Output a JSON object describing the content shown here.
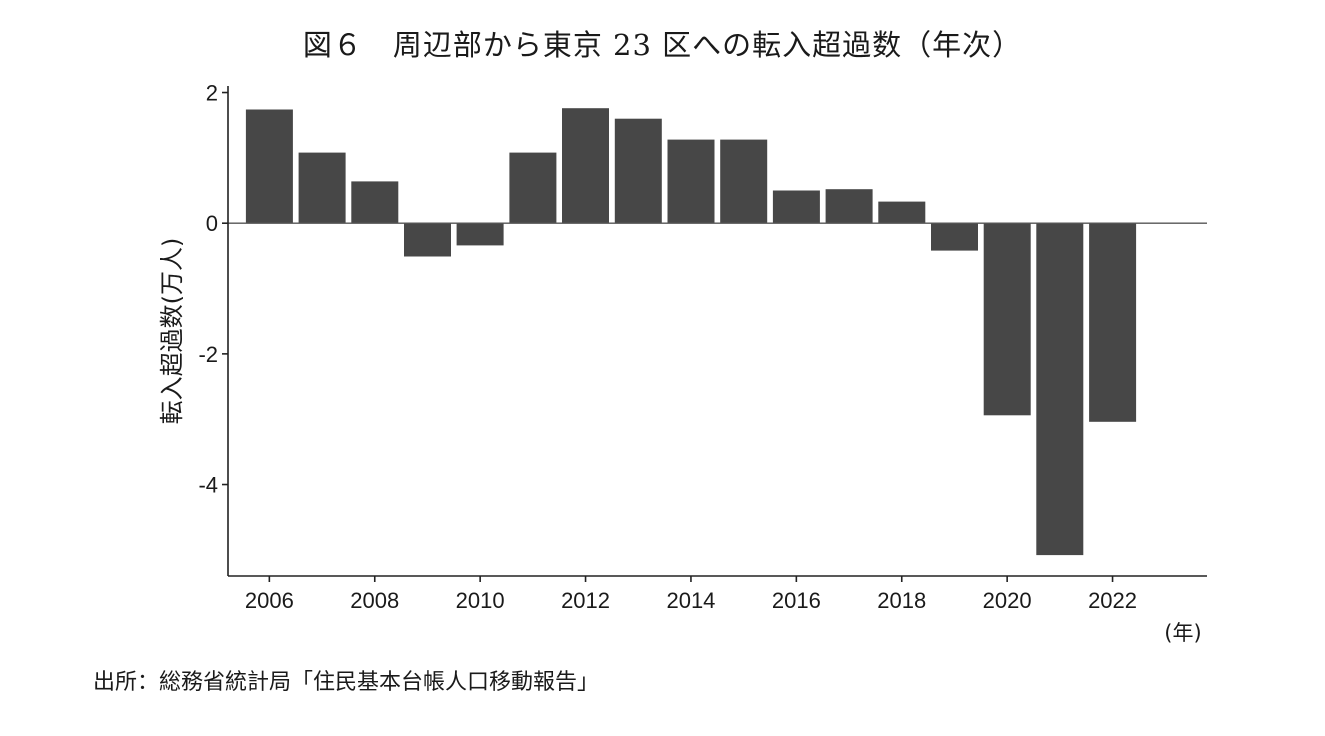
{
  "chart_data": {
    "type": "bar",
    "title": "図６　周辺部から東京 23 区への転入超過数（年次）",
    "ylabel": "転入超過数(万人)",
    "xlabel": "",
    "x_unit": "(年)",
    "categories": [
      "2006",
      "2007",
      "2008",
      "2009",
      "2010",
      "2011",
      "2012",
      "2013",
      "2014",
      "2015",
      "2016",
      "2017",
      "2018",
      "2019",
      "2020",
      "2021",
      "2022"
    ],
    "values": [
      1.74,
      1.08,
      0.64,
      -0.51,
      -0.34,
      1.08,
      1.76,
      1.6,
      1.28,
      1.28,
      0.5,
      0.52,
      0.33,
      -0.42,
      -2.94,
      -5.08,
      -3.04
    ],
    "ylim": [
      -5.4,
      2.1
    ],
    "yticks": [
      2,
      0,
      -2,
      -4
    ],
    "ytick_labels": [
      "2",
      "0",
      "-2",
      "-4"
    ],
    "xticks": [
      "2006",
      "2008",
      "2010",
      "2012",
      "2014",
      "2016",
      "2018",
      "2020",
      "2022"
    ],
    "grid": false,
    "bar_color": "#474747",
    "zero_line": true
  },
  "source": "出所：総務省統計局「住民基本台帳人口移動報告」"
}
